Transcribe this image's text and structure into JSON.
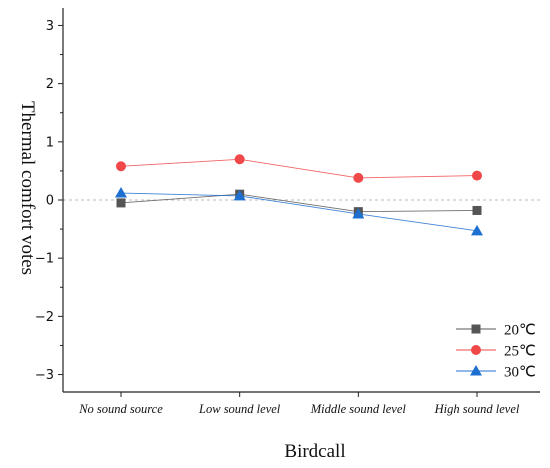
{
  "chart_data": {
    "type": "line",
    "title": "",
    "xlabel": "Birdcall",
    "ylabel": "Thermal comfort votes",
    "categories": [
      "No sound source",
      "Low sound level",
      "Middle sound level",
      "High sound level"
    ],
    "ylim": [
      -3.3,
      3.3
    ],
    "yticks": [
      3,
      2,
      1,
      0,
      -1,
      -2,
      -3
    ],
    "ytick_labels": [
      "3",
      "2",
      "1",
      "0",
      "−1",
      "−2",
      "−3"
    ],
    "zero_reference_line": true,
    "grid": false,
    "legend_position": "bottom-right",
    "series": [
      {
        "name": "20℃",
        "values": [
          -0.05,
          0.1,
          -0.2,
          -0.18
        ],
        "color": "#555555",
        "marker": "square"
      },
      {
        "name": "25℃",
        "values": [
          0.58,
          0.7,
          0.38,
          0.42
        ],
        "color": "#f04848",
        "marker": "circle"
      },
      {
        "name": "30℃",
        "values": [
          0.12,
          0.07,
          -0.24,
          -0.53
        ],
        "color": "#1f6fd0",
        "marker": "triangle"
      }
    ]
  }
}
